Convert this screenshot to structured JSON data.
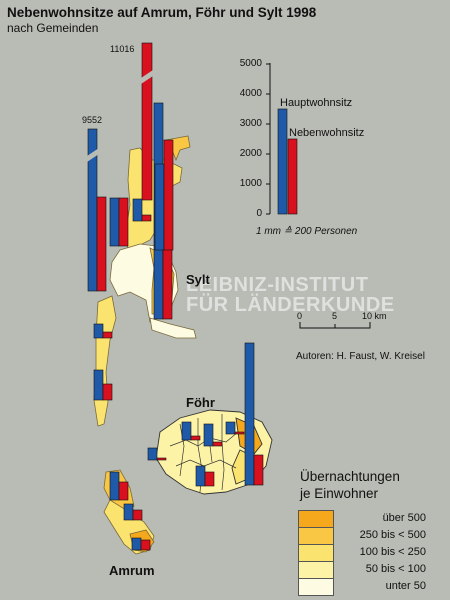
{
  "title": "Nebenwohnsitze auf Amrum, Föhr und Sylt 1998",
  "subtitle": "nach Gemeinden",
  "chart_data": {
    "type": "bar",
    "description_keys": [
      "Hauptwohnsitz",
      "Nebenwohnsitz"
    ],
    "y_ticks": [
      "5000",
      "4000",
      "3000",
      "2000",
      "1000",
      "0"
    ],
    "ylim": [
      0,
      5000
    ],
    "key_values": {
      "Hauptwohnsitz": 3500,
      "Nebenwohnsitz": 2500
    },
    "series": [
      {
        "name": "Hauptwohnsitz",
        "values": [
          3500
        ]
      },
      {
        "name": "Nebenwohnsitz",
        "values": [
          2500
        ]
      }
    ],
    "scale_note": "1 mm ≙ 200 Personen"
  },
  "bar_labels": {
    "large1": "9552",
    "large2": "11016"
  },
  "series_names": {
    "haupt": "Hauptwohnsitz",
    "neben": "Nebenwohnsitz"
  },
  "scale_bar": {
    "ticks": [
      "0",
      "5",
      "10 km"
    ]
  },
  "authors": "Autoren: H. Faust, W. Kreisel",
  "islands": {
    "sylt": "Sylt",
    "foehr": "Föhr",
    "amrum": "Amrum"
  },
  "watermark": {
    "line1": "LEIBNIZ-INSTITUT",
    "line2": "FÜR LÄNDERKUNDE"
  },
  "legend": {
    "title_line1": "Übernachtungen",
    "title_line2": "je Einwohner",
    "classes": [
      {
        "label": "über  500",
        "color": "#f6a81c"
      },
      {
        "label": "250 bis <  500",
        "color": "#f9c744"
      },
      {
        "label": "100 bis <  250",
        "color": "#fbe36f"
      },
      {
        "label": "50 bis <  100",
        "color": "#fdf3a6"
      },
      {
        "label": "unter   50",
        "color": "#fefbe3"
      }
    ]
  },
  "colors": {
    "haupt": "#1f5aa8",
    "neben": "#d9101e",
    "background": "#b9bcb5",
    "water": "#b9bcb5"
  }
}
